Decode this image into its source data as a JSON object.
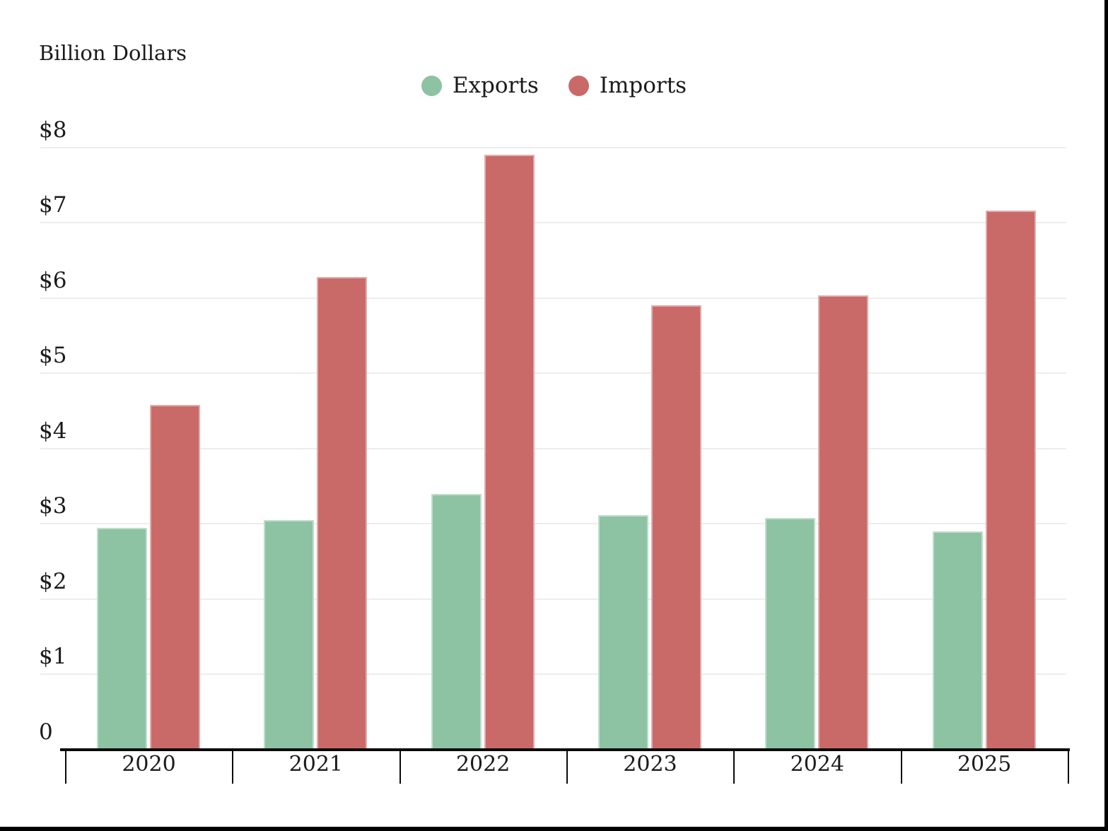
{
  "chart_data": {
    "type": "bar",
    "title": "Billion Dollars",
    "categories": [
      "2020",
      "2021",
      "2022",
      "2023",
      "2024",
      "2025"
    ],
    "series": [
      {
        "name": "Exports",
        "color": "#8dc3a3",
        "values": [
          2.95,
          3.05,
          3.4,
          3.12,
          3.08,
          2.9
        ]
      },
      {
        "name": "Imports",
        "color": "#c96a68",
        "values": [
          4.58,
          6.28,
          7.9,
          5.9,
          6.03,
          7.16
        ]
      }
    ],
    "y_ticks": [
      {
        "label": "$8",
        "value": 8
      },
      {
        "label": "$7",
        "value": 7
      },
      {
        "label": "$6",
        "value": 6
      },
      {
        "label": "$5",
        "value": 5
      },
      {
        "label": "$4",
        "value": 4
      },
      {
        "label": "$3",
        "value": 3
      },
      {
        "label": "$2",
        "value": 2
      },
      {
        "label": "$1",
        "value": 1
      },
      {
        "label": "0",
        "value": 0
      }
    ],
    "ylim": [
      0,
      8.5
    ],
    "grid": true,
    "legend_position": "top-center"
  },
  "colors": {
    "exports": "#8dc3a3",
    "imports": "#c96a68",
    "text": "#1b1b1b",
    "gridline": "#ededed",
    "axis": "#0a0a0a",
    "background": "#ffffff",
    "frame_edge": "#000000"
  }
}
